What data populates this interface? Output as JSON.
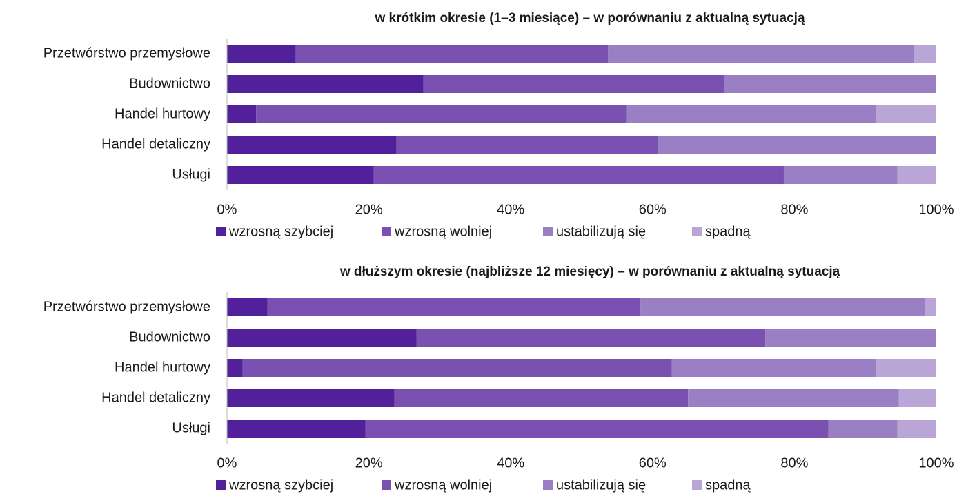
{
  "chart_data": [
    {
      "type": "stacked-bar-horizontal",
      "title": "w krótkim okresie (1–3 miesiące) – w porównaniu z aktualną sytuacją",
      "categories": [
        "Przetwórstwo przemysłowe",
        "Budownictwo",
        "Handel hurtowy",
        "Handel detaliczny",
        "Usługi"
      ],
      "series": [
        {
          "name": "wzrosną szybciej",
          "color": "#52209a",
          "values": [
            9.7,
            27.7,
            4.1,
            23.9,
            20.7
          ]
        },
        {
          "name": "wzrosną wolniej",
          "color": "#7a50b0",
          "values": [
            44.0,
            42.4,
            52.2,
            36.9,
            57.8
          ]
        },
        {
          "name": "ustabilizują się",
          "color": "#9a7fc4",
          "values": [
            43.1,
            29.9,
            35.2,
            39.2,
            16.0
          ]
        },
        {
          "name": "spadną",
          "color": "#b9a6d6",
          "values": [
            3.2,
            0,
            8.5,
            0,
            5.5
          ]
        }
      ],
      "xlim": [
        0,
        100
      ],
      "xticks": [
        {
          "value": 0,
          "label": "0%"
        },
        {
          "value": 20,
          "label": "20%"
        },
        {
          "value": 40,
          "label": "40%"
        },
        {
          "value": 60,
          "label": "60%"
        },
        {
          "value": 80,
          "label": "80%"
        },
        {
          "value": 100,
          "label": "100%"
        }
      ],
      "legend": "bottom"
    },
    {
      "type": "stacked-bar-horizontal",
      "title": "w dłuższym okresie (najbliższe 12 miesięcy) – w porównaniu z aktualną sytuacją",
      "categories": [
        "Przetwórstwo przemysłowe",
        "Budownictwo",
        "Handel hurtowy",
        "Handel detaliczny",
        "Usługi"
      ],
      "series": [
        {
          "name": "wzrosną szybciej",
          "color": "#52209a",
          "values": [
            5.7,
            26.7,
            2.2,
            23.6,
            19.5
          ]
        },
        {
          "name": "wzrosną wolniej",
          "color": "#7a50b0",
          "values": [
            52.6,
            49.2,
            60.5,
            41.4,
            65.3
          ]
        },
        {
          "name": "ustabilizują się",
          "color": "#9a7fc4",
          "values": [
            40.1,
            24.1,
            28.8,
            29.7,
            9.7
          ]
        },
        {
          "name": "spadną",
          "color": "#b9a6d6",
          "values": [
            1.6,
            0,
            8.5,
            5.3,
            5.5
          ]
        }
      ],
      "xlim": [
        0,
        100
      ],
      "xticks": [
        {
          "value": 0,
          "label": "0%"
        },
        {
          "value": 20,
          "label": "20%"
        },
        {
          "value": 40,
          "label": "40%"
        },
        {
          "value": 60,
          "label": "60%"
        },
        {
          "value": 80,
          "label": "80%"
        },
        {
          "value": 100,
          "label": "100%"
        }
      ],
      "legend": "bottom"
    }
  ]
}
